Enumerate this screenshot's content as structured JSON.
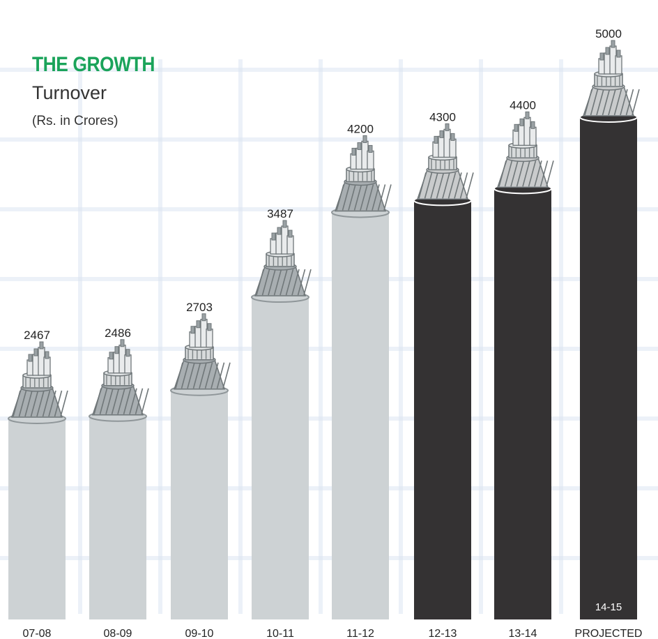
{
  "header": {
    "title": "THE GROWTH",
    "subtitle": "Turnover",
    "unit": "(Rs. in Crores)"
  },
  "colors": {
    "title": "#1aa35a",
    "actual_fill": "#cdd2d4",
    "actual_stroke": "#8f9699",
    "projected_fill": "#343233",
    "grid": "#dbe4f2"
  },
  "chart_data": {
    "type": "bar",
    "title": "THE GROWTH",
    "subtitle": "Turnover",
    "ylabel": "(Rs. in Crores)",
    "categories": [
      "07-08",
      "08-09",
      "09-10",
      "10-11",
      "11-12",
      "12-13",
      "13-14",
      "PROJECTED"
    ],
    "values": [
      2467,
      2486,
      2703,
      3487,
      4200,
      4300,
      4400,
      5000
    ],
    "projected_inner_label": "14-15",
    "dark_from_index": 5,
    "bar_style": "cable-icon"
  }
}
